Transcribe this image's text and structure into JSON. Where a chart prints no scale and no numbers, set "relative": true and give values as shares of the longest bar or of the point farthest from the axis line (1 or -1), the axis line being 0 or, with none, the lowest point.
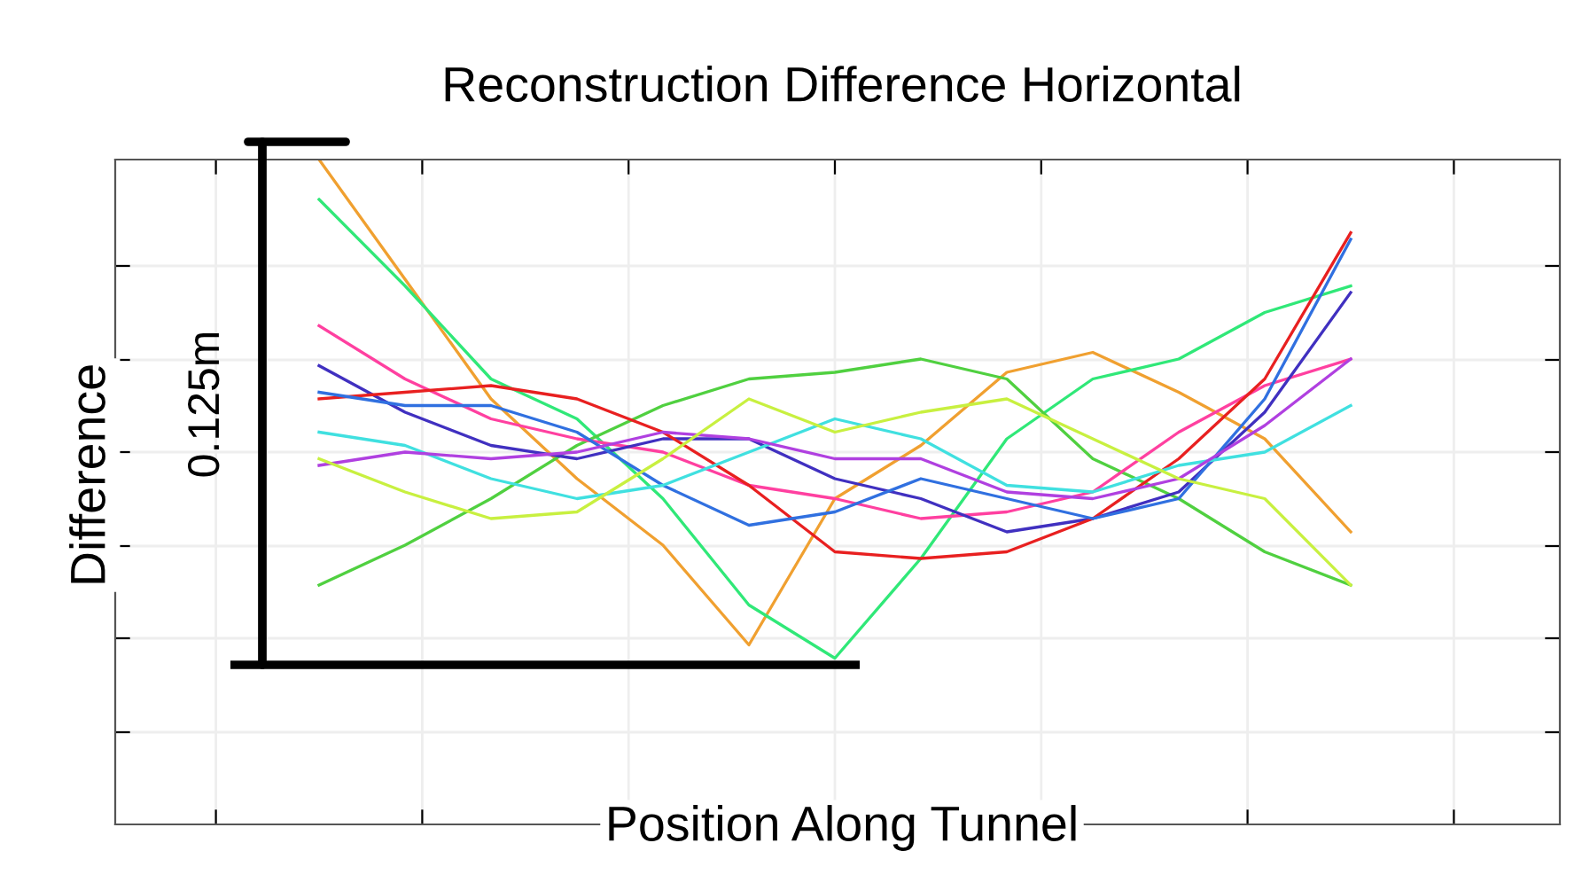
{
  "chart_data": {
    "type": "line",
    "title": "Reconstruction Difference Horizontal",
    "xlabel": "Position Along Tunnel",
    "ylabel": "Difference",
    "relative": true,
    "grid": true,
    "tick_labels": false,
    "annotations": [
      "0.125m"
    ],
    "ref_lines": [
      {
        "axis": "y",
        "value": 0.24,
        "color": "#000000"
      }
    ],
    "categories": [
      null,
      null,
      null,
      null,
      null,
      null,
      null,
      null,
      null,
      null,
      null,
      null,
      null
    ],
    "series": [
      {
        "color": "#f0a030",
        "values": [
          1.0,
          0.82,
          0.64,
          0.52,
          0.42,
          0.27,
          0.49,
          0.57,
          0.68,
          0.71,
          0.65,
          0.58,
          0.44
        ]
      },
      {
        "color": "#30e878",
        "values": [
          0.94,
          0.81,
          0.67,
          0.61,
          0.49,
          0.33,
          0.25,
          0.4,
          0.58,
          0.67,
          0.7,
          0.77,
          0.81
        ]
      },
      {
        "color": "#50d040",
        "values": [
          0.36,
          0.42,
          0.49,
          0.57,
          0.63,
          0.67,
          0.68,
          0.7,
          0.67,
          0.55,
          0.49,
          0.41,
          0.36
        ]
      },
      {
        "color": "#ff40a0",
        "values": [
          0.75,
          0.67,
          0.61,
          0.58,
          0.56,
          0.51,
          0.49,
          0.46,
          0.47,
          0.5,
          0.59,
          0.66,
          0.7
        ]
      },
      {
        "color": "#4030c0",
        "values": [
          0.69,
          0.62,
          0.57,
          0.55,
          0.58,
          0.58,
          0.52,
          0.49,
          0.44,
          0.46,
          0.5,
          0.62,
          0.8
        ]
      },
      {
        "color": "#e82020",
        "values": [
          0.64,
          0.65,
          0.66,
          0.64,
          0.59,
          0.51,
          0.41,
          0.4,
          0.41,
          0.46,
          0.55,
          0.67,
          0.89
        ]
      },
      {
        "color": "#3070e0",
        "values": [
          0.65,
          0.63,
          0.63,
          0.59,
          0.51,
          0.45,
          0.47,
          0.52,
          0.49,
          0.46,
          0.49,
          0.64,
          0.88
        ]
      },
      {
        "color": "#40e0e0",
        "values": [
          0.59,
          0.57,
          0.52,
          0.49,
          0.51,
          0.56,
          0.61,
          0.58,
          0.51,
          0.5,
          0.54,
          0.56,
          0.63
        ]
      },
      {
        "color": "#b040e0",
        "values": [
          0.54,
          0.56,
          0.55,
          0.56,
          0.59,
          0.58,
          0.55,
          0.55,
          0.5,
          0.49,
          0.52,
          0.6,
          0.7
        ]
      },
      {
        "color": "#c8f040",
        "values": [
          0.55,
          0.5,
          0.46,
          0.47,
          0.55,
          0.64,
          0.59,
          0.62,
          0.64,
          0.58,
          0.52,
          0.49,
          0.36
        ]
      }
    ]
  }
}
